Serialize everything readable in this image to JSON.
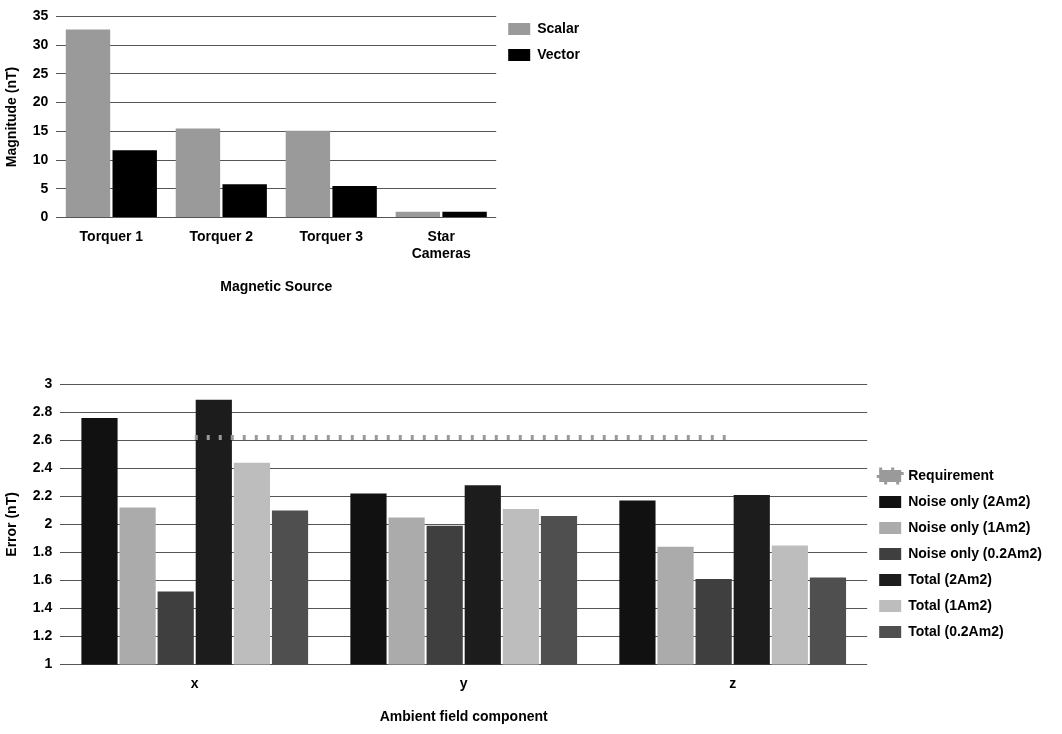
{
  "chart_data": [
    {
      "type": "bar",
      "xlabel": "Magnetic Source",
      "ylabel": "Magnitude (nT)",
      "categories": [
        "Torquer 1",
        "Torquer 2",
        "Torquer 3",
        "Star Cameras"
      ],
      "series": [
        {
          "name": "Scalar",
          "color": "#9a9a9a",
          "values": [
            32.7,
            15.5,
            15.1,
            1.0
          ]
        },
        {
          "name": "Vector",
          "color": "#000000",
          "values": [
            11.7,
            5.8,
            5.5,
            1.0
          ]
        }
      ],
      "ylim": [
        0,
        35
      ],
      "yticks": [
        0,
        5,
        10,
        15,
        20,
        25,
        30,
        35
      ],
      "grid": "y",
      "legend": "top right"
    },
    {
      "type": "bar",
      "xlabel": "Ambient field component",
      "ylabel": "Error (nT)",
      "categories": [
        "x",
        "y",
        "z"
      ],
      "series": [
        {
          "name": "Noise only (2Am2)",
          "color": "#111111",
          "values": [
            2.76,
            2.22,
            2.17
          ]
        },
        {
          "name": "Noise only (1Am2)",
          "color": "#ababab",
          "values": [
            2.12,
            2.05,
            1.84
          ]
        },
        {
          "name": "Noise only (0.2Am2)",
          "color": "#3f3f3f",
          "values": [
            1.52,
            1.99,
            1.61
          ]
        },
        {
          "name": "Total (2Am2)",
          "color": "#1c1c1c",
          "values": [
            2.89,
            2.28,
            2.21
          ]
        },
        {
          "name": "Total (1Am2)",
          "color": "#bdbdbd",
          "values": [
            2.44,
            2.11,
            1.85
          ]
        },
        {
          "name": "Total (0.2Am2)",
          "color": "#4f4f4f",
          "values": [
            2.1,
            2.06,
            1.62
          ]
        },
        {
          "name": "Requirement",
          "type": "line",
          "color": "#9a9a9a",
          "line_style": "dotted",
          "marker": "none",
          "values": [
            2.62,
            2.62,
            2.62
          ]
        }
      ],
      "ylim": [
        1,
        3
      ],
      "yticks": [
        1,
        1.2,
        1.4,
        1.6,
        1.8,
        2,
        2.2,
        2.4,
        2.6,
        2.8,
        3
      ],
      "grid": "y",
      "legend": "right"
    }
  ]
}
